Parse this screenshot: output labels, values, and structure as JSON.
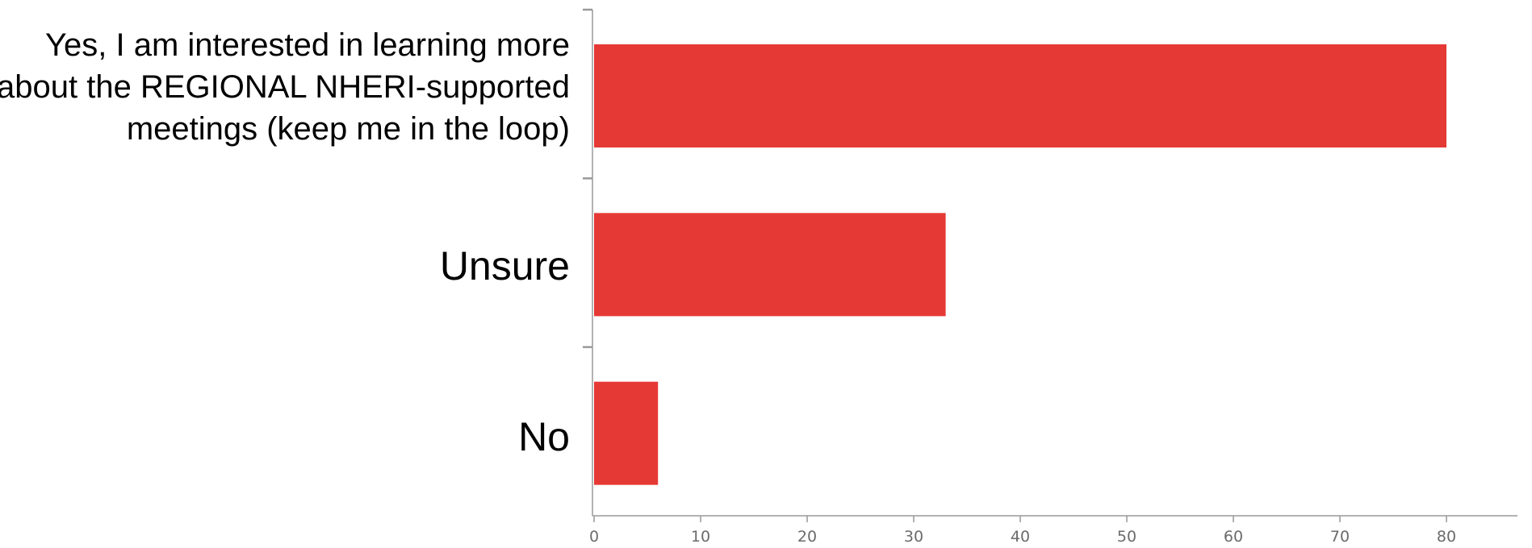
{
  "chart_data": {
    "type": "bar",
    "orientation": "horizontal",
    "categories": [
      "Yes, I am interested in learning more about the REGIONAL NHERI-supported meetings (keep me in the loop)",
      "Unsure",
      "No"
    ],
    "values": [
      80,
      33,
      6
    ],
    "xlim": [
      0,
      88
    ],
    "xticks": [
      0,
      10,
      20,
      30,
      40,
      50,
      60,
      70,
      80
    ],
    "bar_color": "#e53935",
    "axis_color": "#999999",
    "grid": false,
    "legend": "none"
  }
}
